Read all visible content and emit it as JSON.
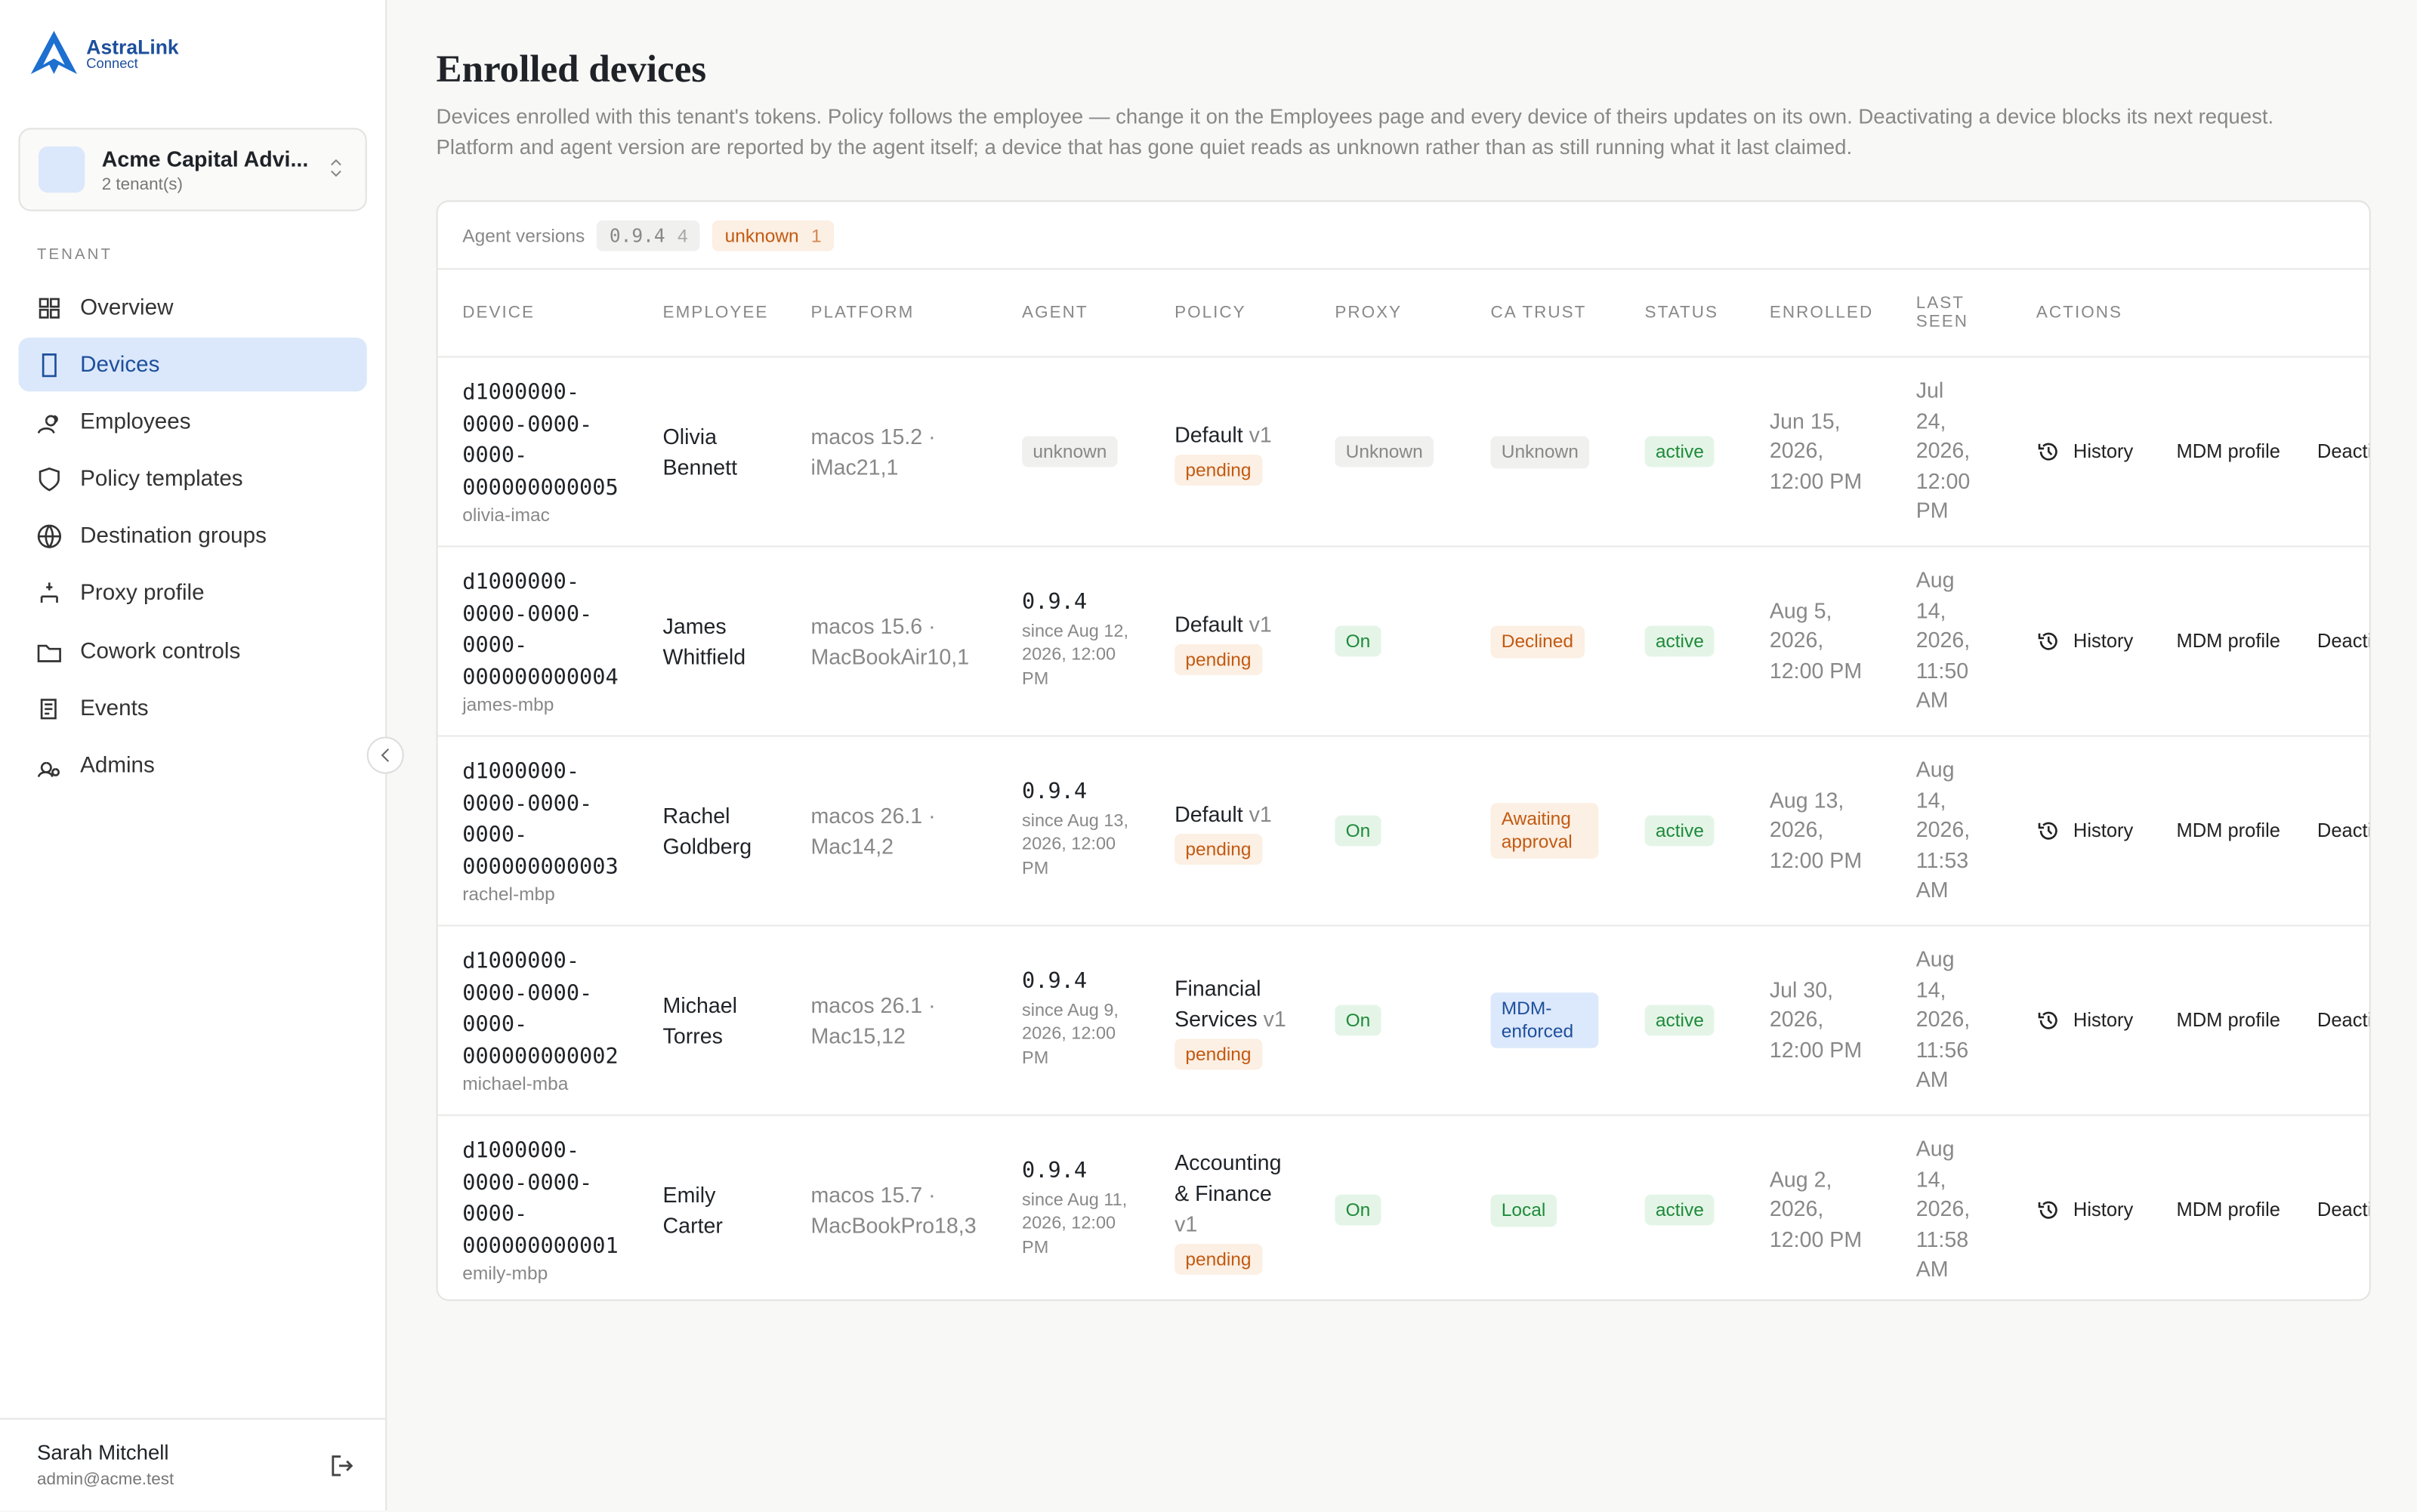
{
  "brand": {
    "name": "AstraLink",
    "sub": "Connect"
  },
  "tenant_switcher": {
    "name": "Acme Capital Advi...",
    "count": "2 tenant(s)"
  },
  "nav": {
    "section": "TENANT",
    "active": 1,
    "items": [
      "Overview",
      "Devices",
      "Employees",
      "Policy templates",
      "Destination groups",
      "Proxy profile",
      "Cowork controls",
      "Events",
      "Admins"
    ]
  },
  "user": {
    "name": "Sarah Mitchell",
    "email": "admin@acme.test"
  },
  "page": {
    "title": "Enrolled devices",
    "description": "Devices enrolled with this tenant's tokens. Policy follows the employee — change it on the Employees page and every device of theirs updates on its own. Deactivating a device blocks its next request. Platform and agent version are reported by the agent itself; a device that has gone quiet reads as unknown rather than as still running what it last claimed."
  },
  "agent_versions": {
    "label": "Agent versions",
    "chips": [
      {
        "version": "0.9.4",
        "count": 4,
        "color": "grey"
      },
      {
        "version": "unknown",
        "count": 1,
        "color": "orange"
      }
    ]
  },
  "table": {
    "columns": [
      "DEVICE",
      "EMPLOYEE",
      "PLATFORM",
      "AGENT",
      "POLICY",
      "PROXY",
      "CA TRUST",
      "STATUS",
      "ENROLLED",
      "LAST SEEN",
      "ACTIONS"
    ],
    "actions": [
      "History",
      "MDM profile",
      "Deactivate"
    ],
    "rows": [
      {
        "device_id": "d1000000-0000-0000-0000-000000000005",
        "hostname": "olivia-imac",
        "employee": "Olivia Bennett",
        "platform": "macos 15.2 · iMac21,1",
        "agent": {
          "version": "unknown"
        },
        "policy": {
          "name": "Default",
          "version": "v1",
          "state": "pending"
        },
        "proxy": {
          "label": "Unknown",
          "color": "grey"
        },
        "ca_trust": {
          "label": "Unknown",
          "color": "grey"
        },
        "status": "active",
        "enrolled": "Jun 15, 2026, 12:00 PM",
        "last_seen": "Jul 24, 2026, 12:00 PM"
      },
      {
        "device_id": "d1000000-0000-0000-0000-000000000004",
        "hostname": "james-mbp",
        "employee": "James Whitfield",
        "platform": "macos 15.6 · MacBookAir10,1",
        "agent": {
          "version": "0.9.4",
          "since": "since Aug 12, 2026, 12:00 PM"
        },
        "policy": {
          "name": "Default",
          "version": "v1",
          "state": "pending"
        },
        "proxy": {
          "label": "On",
          "color": "green"
        },
        "ca_trust": {
          "label": "Declined",
          "color": "orange"
        },
        "status": "active",
        "enrolled": "Aug 5, 2026, 12:00 PM",
        "last_seen": "Aug 14, 2026, 11:50 AM"
      },
      {
        "device_id": "d1000000-0000-0000-0000-000000000003",
        "hostname": "rachel-mbp",
        "employee": "Rachel Goldberg",
        "platform": "macos 26.1 · Mac14,2",
        "agent": {
          "version": "0.9.4",
          "since": "since Aug 13, 2026, 12:00 PM"
        },
        "policy": {
          "name": "Default",
          "version": "v1",
          "state": "pending"
        },
        "proxy": {
          "label": "On",
          "color": "green"
        },
        "ca_trust": {
          "label": "Awaiting approval",
          "color": "orange"
        },
        "status": "active",
        "enrolled": "Aug 13, 2026, 12:00 PM",
        "last_seen": "Aug 14, 2026, 11:53 AM"
      },
      {
        "device_id": "d1000000-0000-0000-0000-000000000002",
        "hostname": "michael-mba",
        "employee": "Michael Torres",
        "platform": "macos 26.1 · Mac15,12",
        "agent": {
          "version": "0.9.4",
          "since": "since Aug 9, 2026, 12:00 PM"
        },
        "policy": {
          "name": "Financial Services",
          "version": "v1",
          "state": "pending"
        },
        "proxy": {
          "label": "On",
          "color": "green"
        },
        "ca_trust": {
          "label": "MDM-enforced",
          "color": "blue"
        },
        "status": "active",
        "enrolled": "Jul 30, 2026, 12:00 PM",
        "last_seen": "Aug 14, 2026, 11:56 AM"
      },
      {
        "device_id": "d1000000-0000-0000-0000-000000000001",
        "hostname": "emily-mbp",
        "employee": "Emily Carter",
        "platform": "macos 15.7 · MacBookPro18,3",
        "agent": {
          "version": "0.9.4",
          "since": "since Aug 11, 2026, 12:00 PM"
        },
        "policy": {
          "name": "Accounting & Finance",
          "version": "v1",
          "state": "pending"
        },
        "proxy": {
          "label": "On",
          "color": "green"
        },
        "ca_trust": {
          "label": "Local",
          "color": "green"
        },
        "status": "active",
        "enrolled": "Aug 2, 2026, 12:00 PM",
        "last_seen": "Aug 14, 2026, 11:58 AM"
      }
    ]
  }
}
